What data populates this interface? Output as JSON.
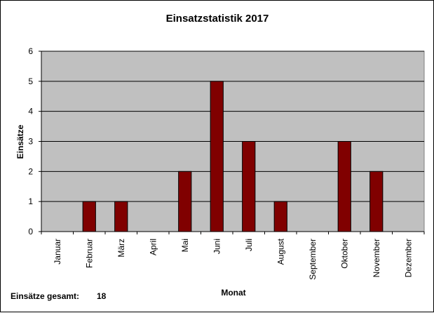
{
  "chart_data": {
    "type": "bar",
    "title": "Einsatzstatistik 2017",
    "xlabel": "Monat",
    "ylabel": "Einsätze",
    "categories": [
      "Januar",
      "Februar",
      "März",
      "April",
      "Mai",
      "Juni",
      "Juli",
      "August",
      "September",
      "Oktober",
      "November",
      "Dezember"
    ],
    "values": [
      0,
      1,
      1,
      0,
      2,
      5,
      3,
      1,
      0,
      3,
      2,
      0
    ],
    "ylim": [
      0,
      6
    ],
    "yticks": [
      "0",
      "1",
      "2",
      "3",
      "4",
      "5",
      "6"
    ],
    "grid": true,
    "colors": {
      "bar": "#800000",
      "plot_background": "#c0c0c0",
      "gridline": "#000000"
    }
  },
  "footer": {
    "total_label": "Einsätze gesamt:",
    "total_value": "18"
  }
}
